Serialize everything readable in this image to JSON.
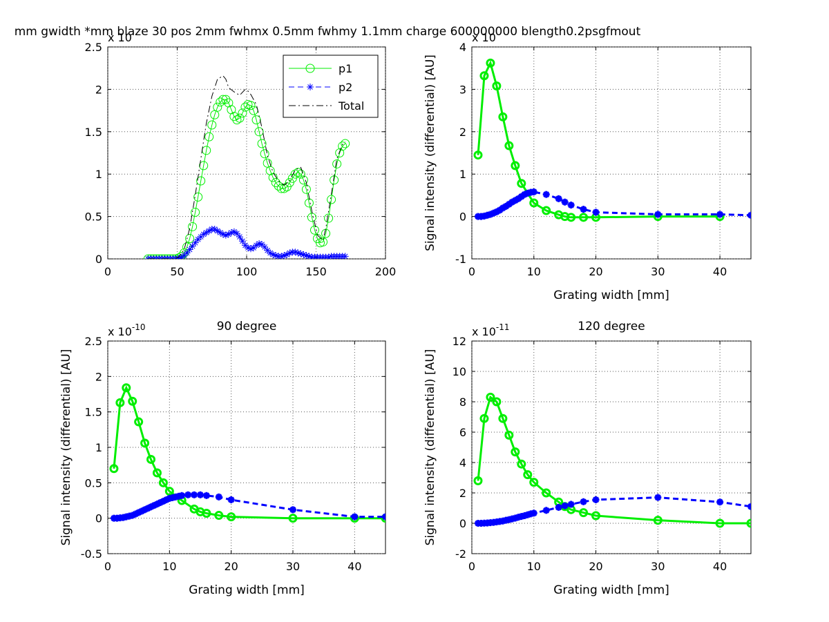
{
  "colors": {
    "p1": "#00ee00",
    "p2": "#0000ff",
    "total": "#000000",
    "grid": "#555555"
  },
  "suptitle": "mm gwidth *mm blaze 30 pos 2mm fwhmx 0.5mm fwhmy 1.1mm charge 600000000 blength0.2psgfmout",
  "chart_data": [
    {
      "type": "line",
      "title": "",
      "xlabel": "",
      "ylabel": "",
      "exponent_label": "x 10",
      "xlim": [
        0,
        200
      ],
      "ylim": [
        0,
        2.5
      ],
      "xticks": [
        0,
        50,
        100,
        150,
        200
      ],
      "yticks": [
        0,
        0.5,
        1,
        1.5,
        2,
        2.5
      ],
      "grid": true,
      "legend_position": "top-right",
      "legend": [
        "p1",
        "p2",
        "Total"
      ],
      "series": [
        {
          "name": "p1",
          "marker": "circle",
          "style": "solid",
          "x": [
            29,
            31,
            33,
            35,
            37,
            39,
            41,
            43,
            45,
            47,
            49,
            51,
            53,
            55,
            57,
            59,
            61,
            63,
            65,
            67,
            69,
            71,
            73,
            75,
            77,
            79,
            81,
            83,
            85,
            87,
            89,
            91,
            93,
            95,
            97,
            99,
            101,
            103,
            105,
            107,
            109,
            111,
            113,
            115,
            117,
            119,
            121,
            123,
            125,
            127,
            129,
            131,
            133,
            135,
            137,
            139,
            141,
            143,
            145,
            147,
            149,
            151,
            153,
            155,
            157,
            159,
            161,
            163,
            165,
            167,
            169,
            171
          ],
          "y": [
            0,
            0,
            0,
            0,
            0,
            0,
            0,
            0,
            0,
            0,
            0,
            0.01,
            0.03,
            0.07,
            0.14,
            0.24,
            0.38,
            0.55,
            0.73,
            0.92,
            1.1,
            1.28,
            1.44,
            1.58,
            1.7,
            1.79,
            1.85,
            1.88,
            1.88,
            1.84,
            1.76,
            1.68,
            1.64,
            1.66,
            1.72,
            1.79,
            1.82,
            1.81,
            1.75,
            1.64,
            1.5,
            1.36,
            1.24,
            1.13,
            1.04,
            0.96,
            0.9,
            0.86,
            0.83,
            0.83,
            0.85,
            0.9,
            0.95,
            1,
            1.02,
            1.0,
            0.93,
            0.82,
            0.66,
            0.49,
            0.34,
            0.24,
            0.19,
            0.2,
            0.3,
            0.48,
            0.7,
            0.93,
            1.12,
            1.25,
            1.33,
            1.36
          ]
        },
        {
          "name": "p2",
          "marker": "star",
          "style": "dashed",
          "x": [
            29,
            31,
            33,
            35,
            37,
            39,
            41,
            43,
            45,
            47,
            49,
            51,
            53,
            55,
            57,
            59,
            61,
            63,
            65,
            67,
            69,
            71,
            73,
            75,
            77,
            79,
            81,
            83,
            85,
            87,
            89,
            91,
            93,
            95,
            97,
            99,
            101,
            103,
            105,
            107,
            109,
            111,
            113,
            115,
            117,
            119,
            121,
            123,
            125,
            127,
            129,
            131,
            133,
            135,
            137,
            139,
            141,
            143,
            145,
            147,
            149,
            151,
            153,
            155,
            157,
            159,
            161,
            163,
            165,
            167,
            169,
            171
          ],
          "y": [
            0,
            0,
            0,
            0,
            0,
            0,
            0,
            0,
            0,
            0,
            0,
            0.005,
            0.015,
            0.04,
            0.07,
            0.11,
            0.15,
            0.19,
            0.23,
            0.26,
            0.29,
            0.31,
            0.33,
            0.35,
            0.35,
            0.33,
            0.31,
            0.29,
            0.28,
            0.29,
            0.31,
            0.32,
            0.3,
            0.26,
            0.21,
            0.16,
            0.13,
            0.12,
            0.13,
            0.16,
            0.18,
            0.17,
            0.14,
            0.1,
            0.07,
            0.05,
            0.04,
            0.03,
            0.03,
            0.04,
            0.05,
            0.07,
            0.08,
            0.08,
            0.07,
            0.06,
            0.05,
            0.04,
            0.03,
            0.02,
            0.02,
            0.02,
            0.02,
            0.02,
            0.02,
            0.02,
            0.03,
            0.03,
            0.03,
            0.03,
            0.03,
            0.03
          ]
        },
        {
          "name": "Total",
          "marker": "none",
          "style": "dashdot",
          "x": [
            29,
            35,
            41,
            47,
            51,
            55,
            59,
            63,
            67,
            71,
            75,
            79,
            83,
            85,
            87,
            91,
            95,
            99,
            101,
            103,
            107,
            111,
            115,
            119,
            123,
            127,
            131,
            135,
            139,
            143,
            147,
            151,
            155,
            157,
            161,
            165,
            169,
            171
          ],
          "y": [
            0,
            0,
            0,
            0,
            0.02,
            0.11,
            0.36,
            0.75,
            1.18,
            1.6,
            1.92,
            2.12,
            2.16,
            2.12,
            2.02,
            1.97,
            1.93,
            2.0,
            1.98,
            1.94,
            1.82,
            1.55,
            1.22,
            1.02,
            0.92,
            0.87,
            0.92,
            1.05,
            1.08,
            0.9,
            0.56,
            0.28,
            0.22,
            0.36,
            0.76,
            1.18,
            1.35,
            1.38
          ]
        }
      ]
    },
    {
      "type": "line",
      "title": "",
      "xlabel": "Grating width [mm]",
      "ylabel": "Signal intensity (differential) [AU]",
      "exponent_label": "x 10",
      "xlim": [
        0,
        45
      ],
      "ylim": [
        -1,
        4
      ],
      "xticks": [
        0,
        10,
        20,
        30,
        40
      ],
      "yticks": [
        -1,
        0,
        1,
        2,
        3,
        4
      ],
      "grid": true,
      "series": [
        {
          "name": "p1",
          "marker": "circle",
          "style": "solid",
          "x": [
            1,
            2,
            3,
            4,
            5,
            6,
            7,
            8,
            10,
            12,
            14,
            15,
            16,
            18,
            20,
            30,
            40
          ],
          "y": [
            1.45,
            3.32,
            3.62,
            3.08,
            2.35,
            1.67,
            1.2,
            0.78,
            0.32,
            0.14,
            0.04,
            0.0,
            -0.02,
            -0.02,
            -0.02,
            0.0,
            0.0
          ]
        },
        {
          "name": "p2",
          "marker": "star",
          "style": "dashed",
          "x": [
            1,
            1.5,
            2,
            2.5,
            3,
            3.5,
            4,
            4.5,
            5,
            5.5,
            6,
            6.5,
            7,
            7.5,
            8,
            8.5,
            9,
            9.5,
            10,
            12,
            14,
            15,
            16,
            18,
            20,
            30,
            40,
            45
          ],
          "y": [
            0,
            0,
            0.01,
            0.03,
            0.05,
            0.08,
            0.11,
            0.15,
            0.2,
            0.24,
            0.29,
            0.34,
            0.38,
            0.42,
            0.47,
            0.52,
            0.55,
            0.57,
            0.58,
            0.52,
            0.42,
            0.34,
            0.27,
            0.17,
            0.1,
            0.05,
            0.05,
            0.03
          ]
        }
      ]
    },
    {
      "type": "line",
      "title": "90 degree",
      "xlabel": "Grating width [mm]",
      "ylabel": "Signal intensity (differential) [AU]",
      "exponent_label": "x 10",
      "exponent_power": "-10",
      "xlim": [
        0,
        45
      ],
      "ylim": [
        -0.5,
        2.5
      ],
      "xticks": [
        0,
        10,
        20,
        30,
        40
      ],
      "yticks": [
        -0.5,
        0,
        0.5,
        1,
        1.5,
        2,
        2.5
      ],
      "ytick_labels": [
        "-0.5",
        "0",
        "0.5",
        "1",
        "1.5",
        "2",
        "2.5"
      ],
      "grid": true,
      "series": [
        {
          "name": "p1",
          "marker": "circle",
          "style": "solid",
          "x": [
            1,
            2,
            3,
            4,
            5,
            6,
            7,
            8,
            9,
            10,
            12,
            14,
            15,
            16,
            18,
            20,
            30,
            40,
            45
          ],
          "y": [
            0.7,
            1.63,
            1.84,
            1.65,
            1.36,
            1.06,
            0.83,
            0.64,
            0.5,
            0.38,
            0.25,
            0.13,
            0.09,
            0.07,
            0.04,
            0.02,
            0.0,
            0.0,
            0.0
          ]
        },
        {
          "name": "p2",
          "marker": "star",
          "style": "dashed",
          "x": [
            1,
            1.5,
            2,
            2.5,
            3,
            3.5,
            4,
            4.5,
            5,
            5.5,
            6,
            6.5,
            7,
            7.5,
            8,
            8.5,
            9,
            9.5,
            10,
            10.5,
            11,
            11.5,
            12,
            13,
            14,
            15,
            16,
            18,
            20,
            30,
            40,
            45
          ],
          "y": [
            0,
            0,
            0.005,
            0.01,
            0.02,
            0.03,
            0.04,
            0.06,
            0.08,
            0.1,
            0.12,
            0.14,
            0.16,
            0.18,
            0.2,
            0.22,
            0.24,
            0.26,
            0.28,
            0.29,
            0.3,
            0.31,
            0.32,
            0.33,
            0.33,
            0.33,
            0.32,
            0.3,
            0.26,
            0.12,
            0.02,
            0.02
          ]
        }
      ]
    },
    {
      "type": "line",
      "title": "120 degree",
      "xlabel": "Grating width [mm]",
      "ylabel": "Signal intensity (differential) [AU]",
      "exponent_label": "x 10",
      "exponent_power": "-11",
      "xlim": [
        0,
        45
      ],
      "ylim": [
        -2,
        12
      ],
      "xticks": [
        0,
        10,
        20,
        30,
        40
      ],
      "yticks": [
        -2,
        0,
        2,
        4,
        6,
        8,
        10,
        12
      ],
      "grid": true,
      "series": [
        {
          "name": "p1",
          "marker": "circle",
          "style": "solid",
          "x": [
            1,
            2,
            3,
            4,
            5,
            6,
            7,
            8,
            9,
            10,
            12,
            14,
            15,
            16,
            18,
            20,
            30,
            40,
            45
          ],
          "y": [
            2.8,
            6.9,
            8.3,
            8.0,
            6.9,
            5.8,
            4.7,
            3.9,
            3.2,
            2.7,
            2.0,
            1.4,
            1.1,
            0.9,
            0.7,
            0.5,
            0.2,
            0.0,
            0.0
          ]
        },
        {
          "name": "p2",
          "marker": "star",
          "style": "dashed",
          "x": [
            1,
            1.5,
            2,
            2.5,
            3,
            3.5,
            4,
            4.5,
            5,
            5.5,
            6,
            6.5,
            7,
            7.5,
            8,
            8.5,
            9,
            9.5,
            10,
            12,
            14,
            15,
            16,
            18,
            20,
            30,
            40,
            45
          ],
          "y": [
            0,
            0,
            0.01,
            0.02,
            0.04,
            0.06,
            0.09,
            0.12,
            0.15,
            0.2,
            0.24,
            0.29,
            0.34,
            0.4,
            0.45,
            0.5,
            0.56,
            0.62,
            0.67,
            0.85,
            1.05,
            1.15,
            1.25,
            1.42,
            1.55,
            1.7,
            1.4,
            1.1
          ]
        }
      ]
    }
  ]
}
